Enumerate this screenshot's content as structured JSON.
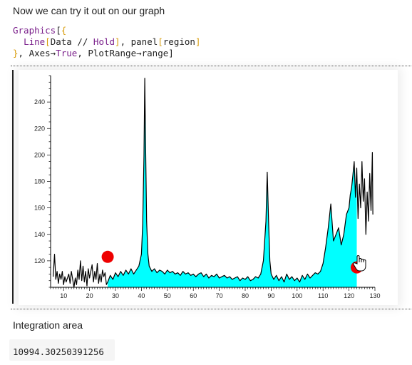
{
  "intro_text": "Now we can try it out on our graph",
  "code": {
    "t1": "Graphics",
    "t2": "[",
    "t3": "{",
    "t4": "Line",
    "t5": "[",
    "t6": "Data // ",
    "t7": "Hold",
    "t8": "]",
    "t9": ", panel",
    "t10": "[",
    "t11": "region",
    "t12": "]",
    "t13": "}",
    "t14": ", Axes→",
    "t15": "True",
    "t16": ", PlotRange→range",
    "t17": "]"
  },
  "label_integration": "Integration area",
  "result_value": "10994.30250391256",
  "icons": {
    "cursor": "hand-pointer-icon",
    "markers": "red-circle-marker"
  },
  "colors": {
    "fill": "#00ffff",
    "line": "#000000",
    "marker": "#ee0000",
    "keyword": "#7a1f8b",
    "bracket": "#d89c0a"
  },
  "chart_data": {
    "type": "area",
    "xlim": [
      5,
      130
    ],
    "ylim": [
      100,
      260
    ],
    "xticks": [
      10,
      20,
      30,
      40,
      50,
      60,
      70,
      80,
      90,
      100,
      110,
      120,
      130
    ],
    "yticks": [
      120,
      140,
      160,
      180,
      200,
      220,
      240
    ],
    "region": [
      27,
      123
    ],
    "markers": [
      [
        27,
        123
      ],
      [
        123,
        115
      ]
    ],
    "line_points": [
      [
        6,
        108
      ],
      [
        6.5,
        125
      ],
      [
        7,
        106
      ],
      [
        7.5,
        112
      ],
      [
        8,
        103
      ],
      [
        8.5,
        110
      ],
      [
        9,
        106
      ],
      [
        9.5,
        112
      ],
      [
        10,
        102
      ],
      [
        10.5,
        108
      ],
      [
        11,
        104
      ],
      [
        12,
        110
      ],
      [
        12.5,
        103
      ],
      [
        13,
        112
      ],
      [
        14,
        100
      ],
      [
        14.5,
        107
      ],
      [
        15,
        102
      ],
      [
        15.5,
        113
      ],
      [
        16,
        106
      ],
      [
        16.5,
        120
      ],
      [
        17,
        105
      ],
      [
        17.5,
        116
      ],
      [
        18,
        104
      ],
      [
        18.5,
        112
      ],
      [
        19,
        101
      ],
      [
        19.5,
        114
      ],
      [
        20,
        107
      ],
      [
        21,
        117
      ],
      [
        21.5,
        104
      ],
      [
        22,
        112
      ],
      [
        22.5,
        106
      ],
      [
        23,
        118
      ],
      [
        23.5,
        103
      ],
      [
        24,
        110
      ],
      [
        24.5,
        104
      ],
      [
        25,
        113
      ],
      [
        25.5,
        108
      ],
      [
        26,
        111
      ],
      [
        26.5,
        102
      ],
      [
        27,
        104
      ],
      [
        28,
        109
      ],
      [
        29,
        106
      ],
      [
        30,
        111
      ],
      [
        31,
        108
      ],
      [
        32,
        112
      ],
      [
        33,
        109
      ],
      [
        34,
        113
      ],
      [
        35,
        110
      ],
      [
        36,
        114
      ],
      [
        37,
        110
      ],
      [
        38,
        113
      ],
      [
        39,
        116
      ],
      [
        40,
        125
      ],
      [
        40.5,
        148
      ],
      [
        41,
        200
      ],
      [
        41.3,
        258
      ],
      [
        41.6,
        210
      ],
      [
        42,
        150
      ],
      [
        42.5,
        125
      ],
      [
        43,
        116
      ],
      [
        44,
        112
      ],
      [
        45,
        114
      ],
      [
        46,
        111
      ],
      [
        47,
        113
      ],
      [
        48,
        112
      ],
      [
        49,
        110
      ],
      [
        50,
        113
      ],
      [
        51,
        111
      ],
      [
        52,
        112
      ],
      [
        53,
        110
      ],
      [
        54,
        111
      ],
      [
        55,
        109
      ],
      [
        56,
        112
      ],
      [
        57,
        110
      ],
      [
        58,
        111
      ],
      [
        59,
        109
      ],
      [
        60,
        110
      ],
      [
        61,
        108
      ],
      [
        62,
        110
      ],
      [
        63,
        111
      ],
      [
        64,
        108
      ],
      [
        65,
        110
      ],
      [
        66,
        107
      ],
      [
        67,
        109
      ],
      [
        68,
        108
      ],
      [
        69,
        110
      ],
      [
        70,
        107
      ],
      [
        71,
        108
      ],
      [
        72,
        109
      ],
      [
        73,
        107
      ],
      [
        74,
        108
      ],
      [
        75,
        106
      ],
      [
        76,
        107
      ],
      [
        77,
        108
      ],
      [
        78,
        105
      ],
      [
        79,
        107
      ],
      [
        80,
        106
      ],
      [
        81,
        108
      ],
      [
        82,
        105
      ],
      [
        83,
        106
      ],
      [
        84,
        108
      ],
      [
        85,
        107
      ],
      [
        86,
        110
      ],
      [
        87,
        120
      ],
      [
        88,
        150
      ],
      [
        88.5,
        187
      ],
      [
        89,
        150
      ],
      [
        89.5,
        120
      ],
      [
        90,
        110
      ],
      [
        91,
        106
      ],
      [
        92,
        109
      ],
      [
        93,
        105
      ],
      [
        94,
        108
      ],
      [
        95,
        104
      ],
      [
        96,
        110
      ],
      [
        97,
        106
      ],
      [
        98,
        108
      ],
      [
        99,
        105
      ],
      [
        100,
        107
      ],
      [
        101,
        104
      ],
      [
        102,
        109
      ],
      [
        103,
        106
      ],
      [
        104,
        110
      ],
      [
        105,
        107
      ],
      [
        106,
        109
      ],
      [
        107,
        111
      ],
      [
        108,
        110
      ],
      [
        109,
        112
      ],
      [
        110,
        118
      ],
      [
        111,
        130
      ],
      [
        112,
        145
      ],
      [
        113,
        163
      ],
      [
        114,
        135
      ],
      [
        115,
        140
      ],
      [
        116,
        145
      ],
      [
        117,
        132
      ],
      [
        118,
        140
      ],
      [
        119,
        155
      ],
      [
        120,
        160
      ],
      [
        120.5,
        170
      ],
      [
        121,
        175
      ],
      [
        121.5,
        185
      ],
      [
        122,
        195
      ],
      [
        122.5,
        168
      ],
      [
        123,
        190
      ],
      [
        123.5,
        152
      ],
      [
        124,
        178
      ],
      [
        124.5,
        160
      ],
      [
        125,
        195
      ],
      [
        125.5,
        165
      ],
      [
        126,
        182
      ],
      [
        126.5,
        140
      ],
      [
        127,
        172
      ],
      [
        127.5,
        150
      ],
      [
        128,
        186
      ],
      [
        128.5,
        158
      ],
      [
        129,
        202
      ],
      [
        129.2,
        155
      ]
    ]
  }
}
